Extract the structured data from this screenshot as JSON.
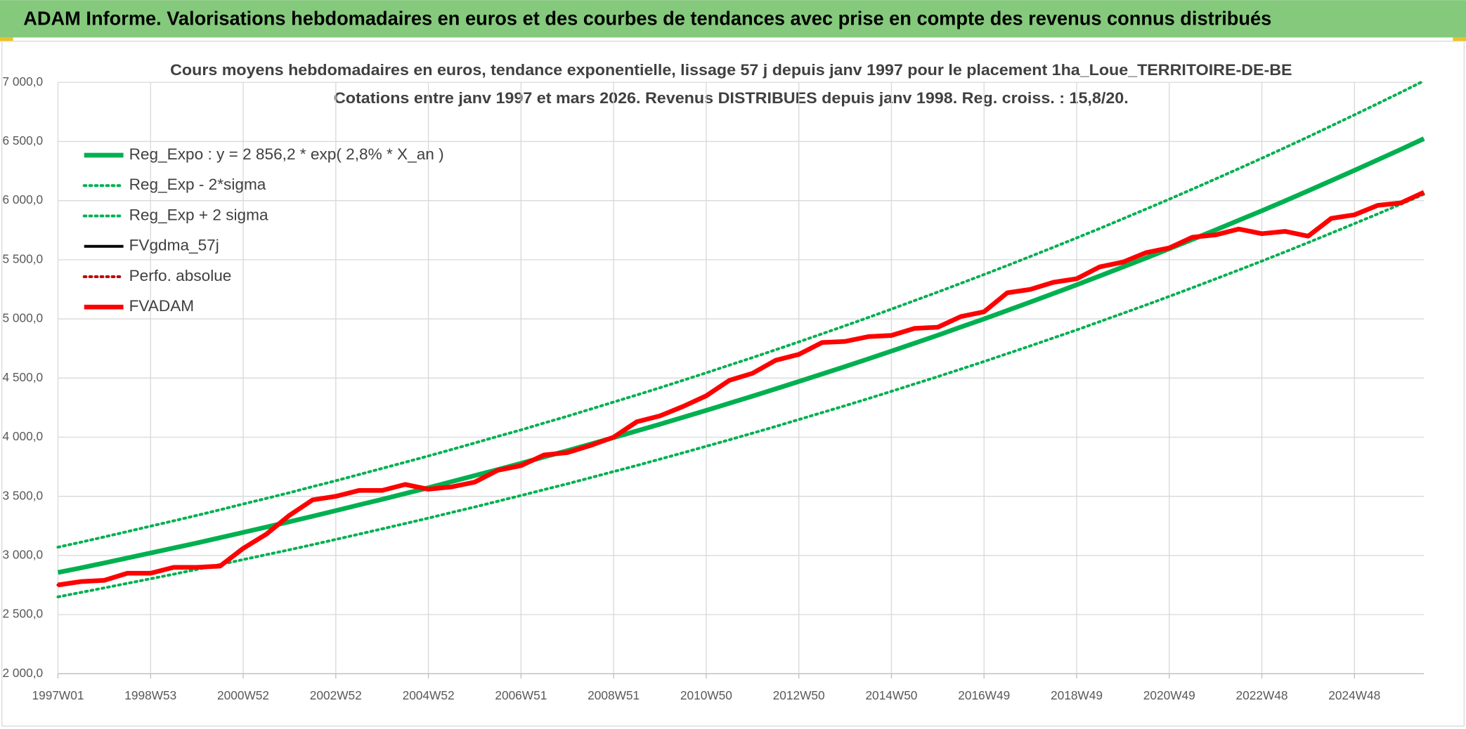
{
  "heading": "ADAM Informe. Valorisations hebdomadaires en euros et des courbes de tendances avec prise en compte des revenus connus distribués",
  "chart_data": {
    "type": "line",
    "title": "Cours moyens hebdomadaires en euros, tendance exponentielle, lissage 57 j depuis janv 1997 pour le placement 1ha_Loue_TERRITOIRE-DE-BE",
    "subtitle": "Cotations entre janv 1997 et mars 2026. Revenus DISTRIBUES depuis janv 1998. Reg. croiss. : 15,8/20.",
    "categories": [
      "1997W01",
      null,
      null,
      null,
      "1998W53",
      null,
      null,
      null,
      "2000W52",
      null,
      null,
      null,
      "2002W52",
      null,
      null,
      null,
      "2004W52",
      null,
      null,
      null,
      "2006W51",
      null,
      null,
      null,
      "2008W51",
      null,
      null,
      null,
      "2010W50",
      null,
      null,
      null,
      "2012W50",
      null,
      null,
      null,
      "2014W50",
      null,
      null,
      null,
      "2016W49",
      null,
      null,
      null,
      "2018W49",
      null,
      null,
      null,
      "2020W49",
      null,
      null,
      null,
      "2022W48",
      null,
      null,
      null,
      "2024W48",
      null,
      null,
      null
    ],
    "ylim": [
      2000,
      7000
    ],
    "yticks": [
      {
        "value": 2000,
        "label": "2 000,0"
      },
      {
        "value": 2500,
        "label": "2 500,0"
      },
      {
        "value": 3000,
        "label": "3 000,0"
      },
      {
        "value": 3500,
        "label": "3 500,0"
      },
      {
        "value": 4000,
        "label": "4 000,0"
      },
      {
        "value": 4500,
        "label": "4 500,0"
      },
      {
        "value": 5000,
        "label": "5 000,0"
      },
      {
        "value": 5500,
        "label": "5 500,0"
      },
      {
        "value": 6000,
        "label": "6 000,0"
      },
      {
        "value": 6500,
        "label": "6 500,0"
      },
      {
        "value": 7000,
        "label": "7 000,0"
      }
    ],
    "grid": true,
    "legend": "upper left",
    "series": [
      {
        "name": "Reg_Expo : y = 2 856,2 * exp( 2,8% *  X_an )",
        "color": "#00b050",
        "style": "thick",
        "values": [
          2856,
          2896,
          2937,
          2979,
          3021,
          3063,
          3106,
          3150,
          3195,
          3240,
          3285,
          3332,
          3379,
          3427,
          3475,
          3524,
          3573,
          3624,
          3675,
          3727,
          3779,
          3833,
          3886,
          3941,
          3997,
          4053,
          4110,
          4168,
          4227,
          4287,
          4347,
          4408,
          4471,
          4534,
          4597,
          4662,
          4728,
          4795,
          4862,
          4931,
          5000,
          5071,
          5142,
          5215,
          5288,
          5363,
          5439,
          5515,
          5593,
          5672,
          5752,
          5833,
          5915,
          5998,
          6083,
          6169,
          6256,
          6344,
          6433,
          6524
        ]
      },
      {
        "name": "Reg_Exp - 2*sigma",
        "color": "#00b050",
        "style": "dotted",
        "values": [
          2650,
          2688,
          2726,
          2765,
          2803,
          2842,
          2882,
          2923,
          2965,
          3007,
          3048,
          3092,
          3136,
          3180,
          3225,
          3270,
          3316,
          3363,
          3410,
          3459,
          3507,
          3557,
          3606,
          3657,
          3709,
          3761,
          3814,
          3868,
          3923,
          3978,
          4034,
          4091,
          4149,
          4208,
          4266,
          4326,
          4388,
          4450,
          4512,
          4576,
          4640,
          4706,
          4772,
          4840,
          4907,
          4977,
          5047,
          5118,
          5190,
          5264,
          5338,
          5413,
          5489,
          5566,
          5645,
          5725,
          5806,
          5887,
          5970,
          6054
        ]
      },
      {
        "name": "Reg_Exp + 2 sigma",
        "color": "#00b050",
        "style": "dotted",
        "values": [
          3070,
          3113,
          3157,
          3202,
          3248,
          3293,
          3339,
          3386,
          3435,
          3483,
          3531,
          3582,
          3632,
          3684,
          3736,
          3788,
          3841,
          3896,
          3951,
          4007,
          4062,
          4120,
          4177,
          4237,
          4297,
          4357,
          4418,
          4481,
          4544,
          4609,
          4673,
          4739,
          4806,
          4874,
          4942,
          5012,
          5083,
          5155,
          5227,
          5301,
          5375,
          5451,
          5528,
          5606,
          5685,
          5765,
          5847,
          5929,
          6012,
          6097,
          6183,
          6270,
          6359,
          6448,
          6539,
          6632,
          6725,
          6820,
          6915,
          7013
        ]
      },
      {
        "name": "FVgdma_57j",
        "color": "#000000",
        "style": "thin",
        "values": [
          2750,
          2780,
          2790,
          2850,
          2850,
          2900,
          2900,
          2910,
          3060,
          3180,
          3340,
          3470,
          3500,
          3550,
          3550,
          3600,
          3560,
          3580,
          3620,
          3720,
          3760,
          3850,
          3870,
          3930,
          4000,
          4130,
          4180,
          4260,
          4350,
          4480,
          4540,
          4650,
          4700,
          4800,
          4810,
          4850,
          4860,
          4920,
          4930,
          5020,
          5060,
          5220,
          5250,
          5310,
          5340,
          5440,
          5480,
          5560,
          5600,
          5690,
          5710,
          5760,
          5720,
          5740,
          5700,
          5850,
          5880,
          5960,
          5980,
          6070
        ]
      },
      {
        "name": "Perfo. absolue",
        "color": "#c00000",
        "style": "dotted",
        "values": [
          2750,
          2780,
          2790,
          2850,
          2850,
          2900,
          2900,
          2910,
          3060,
          3180,
          3340,
          3470,
          3500,
          3550,
          3550,
          3600,
          3560,
          3580,
          3620,
          3720,
          3760,
          3850,
          3870,
          3930,
          4000,
          4130,
          4180,
          4260,
          4350,
          4480,
          4540,
          4650,
          4700,
          4800,
          4810,
          4850,
          4860,
          4920,
          4930,
          5020,
          5060,
          5220,
          5250,
          5310,
          5340,
          5440,
          5480,
          5560,
          5600,
          5690,
          5710,
          5760,
          5720,
          5740,
          5700,
          5850,
          5880,
          5960,
          5980,
          6070
        ]
      },
      {
        "name": "FVADAM",
        "color": "#ff0000",
        "style": "thick",
        "values": [
          2750,
          2780,
          2790,
          2850,
          2850,
          2900,
          2900,
          2910,
          3060,
          3180,
          3340,
          3470,
          3500,
          3550,
          3550,
          3600,
          3560,
          3580,
          3620,
          3720,
          3760,
          3850,
          3870,
          3930,
          4000,
          4130,
          4180,
          4260,
          4350,
          4480,
          4540,
          4650,
          4700,
          4800,
          4810,
          4850,
          4860,
          4920,
          4930,
          5020,
          5060,
          5220,
          5250,
          5310,
          5340,
          5440,
          5480,
          5560,
          5600,
          5690,
          5710,
          5760,
          5720,
          5740,
          5700,
          5850,
          5880,
          5960,
          5980,
          6070
        ]
      }
    ]
  }
}
